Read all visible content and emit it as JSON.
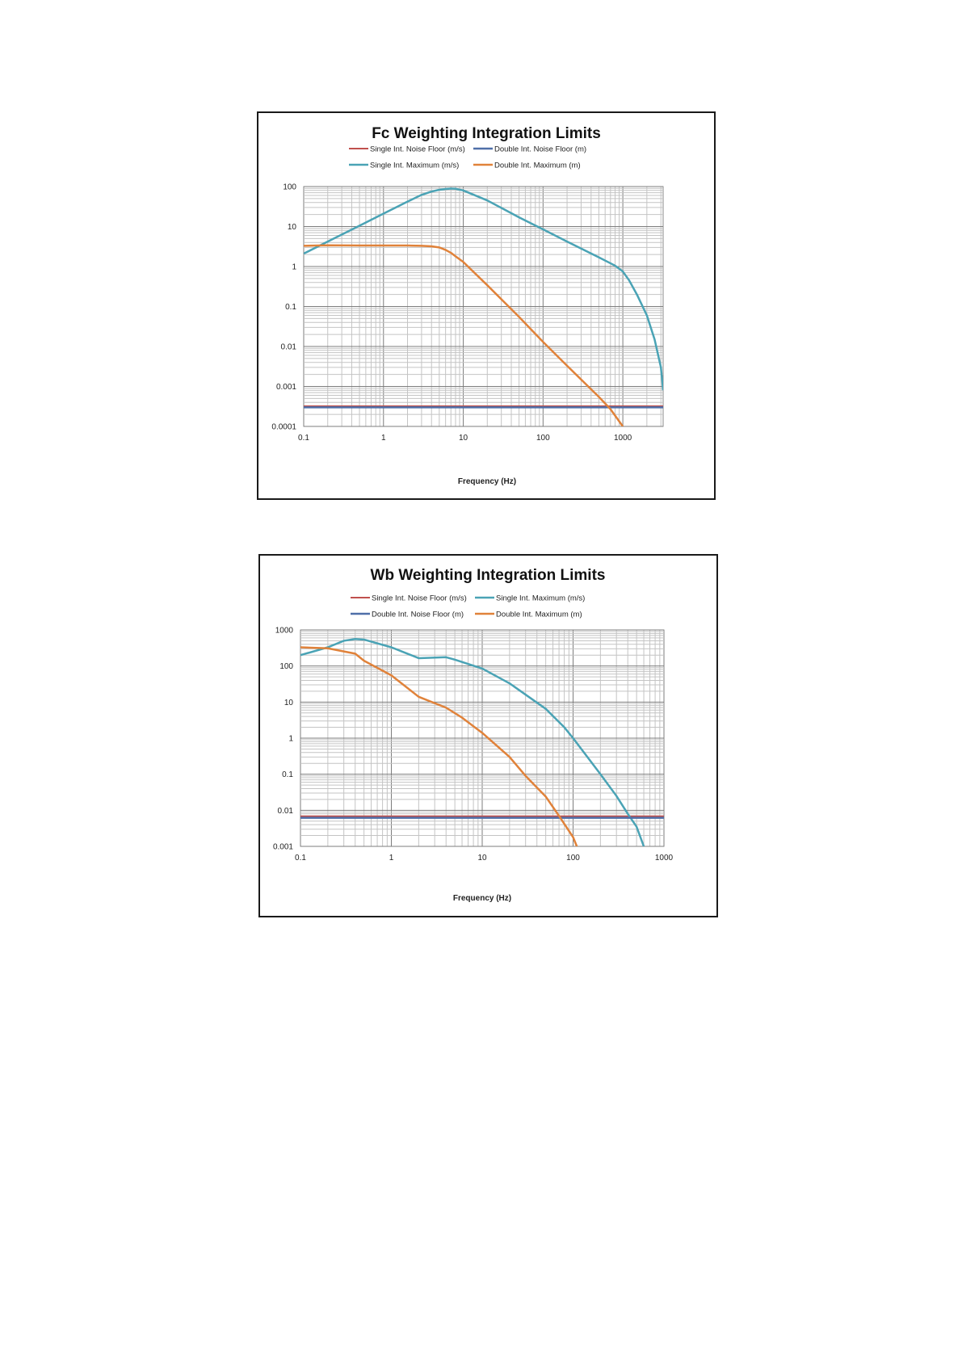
{
  "chart_data": [
    {
      "type": "line",
      "title": "Fc Weighting Integration Limits",
      "xlabel": "Frequency (Hz)",
      "ylabel": "",
      "xscale": "log",
      "yscale": "log",
      "xlim": [
        0.1,
        3200
      ],
      "ylim": [
        0.0001,
        100
      ],
      "x_ticks": [
        "0.1",
        "1",
        "10",
        "100",
        "1000"
      ],
      "y_ticks": [
        "0.0001",
        "0.001",
        "0.01",
        "0.1",
        "1",
        "10",
        "100"
      ],
      "grid": true,
      "legend_position": "top",
      "series": [
        {
          "name": "Single Int. Noise Floor (m/s)",
          "color": "#c0504d",
          "width": 2,
          "x": [
            0.1,
            3200
          ],
          "y": [
            0.00032,
            0.00032
          ]
        },
        {
          "name": "Double Int. Noise Floor (m)",
          "color": "#4f6fa8",
          "width": 2.5,
          "x": [
            0.1,
            3200
          ],
          "y": [
            0.0003,
            0.0003
          ]
        },
        {
          "name": "Single Int. Maximum (m/s)",
          "color": "#4aa3b5",
          "width": 2.5,
          "x": [
            0.1,
            0.2,
            0.5,
            1,
            2,
            3,
            4,
            5,
            6,
            7,
            8,
            10,
            20,
            50,
            100,
            200,
            500,
            800,
            1000,
            1200,
            1500,
            2000,
            2500,
            3000,
            3200
          ],
          "y": [
            2.1,
            4.2,
            10.5,
            21,
            42,
            62,
            75,
            83,
            87,
            89,
            88,
            80,
            45,
            17,
            8.5,
            4.2,
            1.7,
            1.05,
            0.75,
            0.45,
            0.2,
            0.06,
            0.015,
            0.003,
            0.0008
          ]
        },
        {
          "name": "Double Int. Maximum (m)",
          "color": "#e0823a",
          "width": 2.5,
          "x": [
            0.1,
            0.2,
            0.5,
            1,
            2,
            3,
            4,
            5,
            6,
            7,
            8,
            10,
            20,
            50,
            100,
            200,
            500,
            700,
            1000
          ],
          "y": [
            3.3,
            3.4,
            3.35,
            3.35,
            3.35,
            3.3,
            3.2,
            3.0,
            2.6,
            2.2,
            1.8,
            1.3,
            0.34,
            0.055,
            0.013,
            0.0033,
            0.00055,
            0.00027,
            0.0001
          ]
        }
      ]
    },
    {
      "type": "line",
      "title": "Wb Weighting Integration Limits",
      "xlabel": "Frequency (Hz)",
      "ylabel": "",
      "xscale": "log",
      "yscale": "log",
      "xlim": [
        0.1,
        1000
      ],
      "ylim": [
        0.001,
        1000
      ],
      "x_ticks": [
        "0.1",
        "1",
        "10",
        "100",
        "1000"
      ],
      "y_ticks": [
        "0.001",
        "0.01",
        "0.1",
        "1",
        "10",
        "100",
        "1000"
      ],
      "grid": true,
      "legend_position": "top",
      "series": [
        {
          "name": "Single Int. Noise Floor (m/s)",
          "color": "#c0504d",
          "width": 2,
          "x": [
            0.1,
            1000
          ],
          "y": [
            0.0068,
            0.0068
          ]
        },
        {
          "name": "Single Int. Maximum (m/s)",
          "color": "#4aa3b5",
          "width": 2.5,
          "x": [
            0.1,
            0.2,
            0.3,
            0.4,
            0.5,
            1,
            2,
            4,
            5,
            10,
            20,
            50,
            80,
            100,
            200,
            300,
            400,
            500,
            600
          ],
          "y": [
            200,
            330,
            500,
            560,
            540,
            330,
            165,
            175,
            150,
            85,
            33,
            6.5,
            2.0,
            1.0,
            0.1,
            0.025,
            0.008,
            0.0035,
            0.001
          ]
        },
        {
          "name": "Double Int. Noise Floor (m)",
          "color": "#4f6fa8",
          "width": 2.5,
          "x": [
            0.1,
            1000
          ],
          "y": [
            0.0062,
            0.0062
          ]
        },
        {
          "name": "Double Int. Maximum (m)",
          "color": "#e0823a",
          "width": 2.5,
          "x": [
            0.1,
            0.2,
            0.4,
            0.5,
            1,
            2,
            4,
            6,
            10,
            20,
            30,
            50,
            70,
            100,
            110
          ],
          "y": [
            330,
            310,
            220,
            140,
            55,
            14,
            7,
            3.7,
            1.4,
            0.3,
            0.09,
            0.024,
            0.007,
            0.0018,
            0.001
          ]
        }
      ]
    }
  ]
}
